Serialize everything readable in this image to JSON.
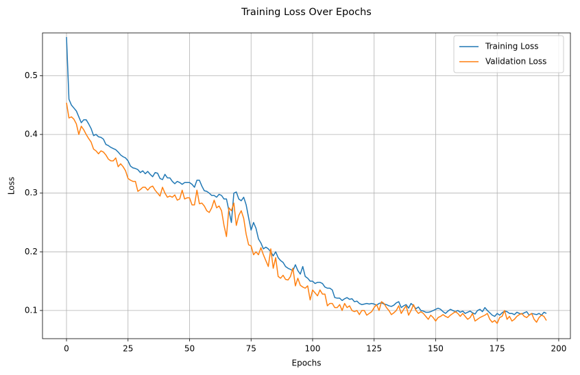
{
  "chart_data": {
    "type": "line",
    "title": "Training Loss Over Epochs",
    "x_label": "Epochs",
    "y_label": "Loss",
    "x": [
      0,
      1,
      2,
      3,
      4,
      5,
      6,
      7,
      8,
      9,
      10,
      11,
      12,
      13,
      14,
      15,
      16,
      17,
      18,
      19,
      20,
      21,
      22,
      23,
      24,
      25,
      26,
      27,
      28,
      29,
      30,
      31,
      32,
      33,
      34,
      35,
      36,
      37,
      38,
      39,
      40,
      41,
      42,
      43,
      44,
      45,
      46,
      47,
      48,
      49,
      50,
      51,
      52,
      53,
      54,
      55,
      56,
      57,
      58,
      59,
      60,
      61,
      62,
      63,
      64,
      65,
      66,
      67,
      68,
      69,
      70,
      71,
      72,
      73,
      74,
      75,
      76,
      77,
      78,
      79,
      80,
      81,
      82,
      83,
      84,
      85,
      86,
      87,
      88,
      89,
      90,
      91,
      92,
      93,
      94,
      95,
      96,
      97,
      98,
      99,
      100,
      101,
      102,
      103,
      104,
      105,
      106,
      107,
      108,
      109,
      110,
      111,
      112,
      113,
      114,
      115,
      116,
      117,
      118,
      119,
      120,
      121,
      122,
      123,
      124,
      125,
      126,
      127,
      128,
      129,
      130,
      131,
      132,
      133,
      134,
      135,
      136,
      137,
      138,
      139,
      140,
      141,
      142,
      143,
      144,
      145,
      146,
      147,
      148,
      149,
      150,
      151,
      152,
      153,
      154,
      155,
      156,
      157,
      158,
      159,
      160,
      161,
      162,
      163,
      164,
      165,
      166,
      167,
      168,
      169,
      170,
      171,
      172,
      173,
      174,
      175,
      176,
      177,
      178,
      179,
      180,
      181,
      182,
      183,
      184,
      185,
      186,
      187,
      188,
      189,
      190,
      191,
      192,
      193,
      194,
      195
    ],
    "series": [
      {
        "name": "Training Loss",
        "color": "#1f77b4",
        "values": [
          0.566,
          0.46,
          0.45,
          0.445,
          0.44,
          0.43,
          0.42,
          0.425,
          0.425,
          0.418,
          0.41,
          0.398,
          0.4,
          0.396,
          0.395,
          0.392,
          0.383,
          0.381,
          0.378,
          0.376,
          0.374,
          0.37,
          0.365,
          0.362,
          0.36,
          0.355,
          0.346,
          0.343,
          0.342,
          0.34,
          0.335,
          0.338,
          0.333,
          0.337,
          0.332,
          0.328,
          0.335,
          0.334,
          0.325,
          0.323,
          0.332,
          0.326,
          0.326,
          0.32,
          0.316,
          0.32,
          0.318,
          0.315,
          0.318,
          0.318,
          0.318,
          0.315,
          0.31,
          0.322,
          0.322,
          0.312,
          0.304,
          0.303,
          0.3,
          0.296,
          0.296,
          0.293,
          0.298,
          0.296,
          0.29,
          0.29,
          0.27,
          0.25,
          0.3,
          0.302,
          0.29,
          0.287,
          0.293,
          0.28,
          0.258,
          0.237,
          0.25,
          0.24,
          0.222,
          0.215,
          0.205,
          0.208,
          0.205,
          0.2,
          0.193,
          0.2,
          0.19,
          0.185,
          0.182,
          0.175,
          0.172,
          0.17,
          0.168,
          0.178,
          0.168,
          0.162,
          0.175,
          0.158,
          0.155,
          0.15,
          0.15,
          0.146,
          0.148,
          0.148,
          0.146,
          0.14,
          0.138,
          0.138,
          0.135,
          0.122,
          0.121,
          0.121,
          0.117,
          0.12,
          0.122,
          0.119,
          0.12,
          0.115,
          0.116,
          0.112,
          0.11,
          0.111,
          0.112,
          0.111,
          0.112,
          0.111,
          0.109,
          0.112,
          0.113,
          0.111,
          0.11,
          0.108,
          0.107,
          0.109,
          0.113,
          0.115,
          0.105,
          0.108,
          0.11,
          0.104,
          0.112,
          0.108,
          0.103,
          0.106,
          0.1,
          0.099,
          0.097,
          0.097,
          0.098,
          0.1,
          0.102,
          0.104,
          0.102,
          0.098,
          0.095,
          0.099,
          0.102,
          0.1,
          0.098,
          0.1,
          0.097,
          0.099,
          0.095,
          0.097,
          0.099,
          0.096,
          0.094,
          0.1,
          0.102,
          0.098,
          0.105,
          0.1,
          0.096,
          0.092,
          0.09,
          0.095,
          0.092,
          0.096,
          0.099,
          0.098,
          0.095,
          0.095,
          0.093,
          0.097,
          0.095,
          0.094,
          0.096,
          0.098,
          0.092,
          0.095,
          0.094,
          0.093,
          0.095,
          0.092,
          0.097,
          0.095
        ]
      },
      {
        "name": "Validation Loss",
        "color": "#ff7f0e",
        "values": [
          0.454,
          0.428,
          0.43,
          0.426,
          0.418,
          0.4,
          0.414,
          0.408,
          0.4,
          0.393,
          0.387,
          0.375,
          0.372,
          0.367,
          0.372,
          0.37,
          0.365,
          0.358,
          0.355,
          0.355,
          0.36,
          0.345,
          0.35,
          0.345,
          0.338,
          0.325,
          0.322,
          0.32,
          0.32,
          0.303,
          0.306,
          0.31,
          0.31,
          0.305,
          0.31,
          0.312,
          0.305,
          0.3,
          0.295,
          0.31,
          0.3,
          0.293,
          0.295,
          0.293,
          0.297,
          0.288,
          0.29,
          0.305,
          0.29,
          0.292,
          0.292,
          0.28,
          0.28,
          0.305,
          0.282,
          0.283,
          0.278,
          0.27,
          0.267,
          0.275,
          0.288,
          0.275,
          0.278,
          0.27,
          0.245,
          0.226,
          0.275,
          0.27,
          0.283,
          0.245,
          0.262,
          0.27,
          0.257,
          0.23,
          0.212,
          0.21,
          0.195,
          0.2,
          0.195,
          0.207,
          0.195,
          0.185,
          0.175,
          0.205,
          0.172,
          0.19,
          0.158,
          0.155,
          0.16,
          0.153,
          0.152,
          0.158,
          0.172,
          0.142,
          0.155,
          0.143,
          0.14,
          0.138,
          0.142,
          0.118,
          0.135,
          0.13,
          0.125,
          0.135,
          0.128,
          0.128,
          0.108,
          0.112,
          0.112,
          0.105,
          0.105,
          0.11,
          0.1,
          0.112,
          0.105,
          0.108,
          0.1,
          0.098,
          0.1,
          0.093,
          0.1,
          0.1,
          0.092,
          0.095,
          0.098,
          0.105,
          0.11,
          0.1,
          0.115,
          0.112,
          0.105,
          0.1,
          0.093,
          0.096,
          0.1,
          0.108,
          0.095,
          0.102,
          0.108,
          0.092,
          0.1,
          0.11,
          0.1,
          0.095,
          0.098,
          0.095,
          0.09,
          0.085,
          0.092,
          0.088,
          0.082,
          0.088,
          0.09,
          0.093,
          0.09,
          0.088,
          0.092,
          0.095,
          0.098,
          0.095,
          0.09,
          0.095,
          0.09,
          0.085,
          0.088,
          0.095,
          0.082,
          0.085,
          0.088,
          0.09,
          0.092,
          0.095,
          0.085,
          0.08,
          0.083,
          0.078,
          0.088,
          0.09,
          0.1,
          0.085,
          0.09,
          0.082,
          0.085,
          0.09,
          0.093,
          0.095,
          0.09,
          0.088,
          0.092,
          0.095,
          0.085,
          0.08,
          0.088,
          0.092,
          0.09,
          0.083
        ]
      }
    ],
    "xlim": [
      -9.75,
      204.75
    ],
    "ylim": [
      0.052,
      0.573
    ],
    "xticks": [
      0,
      25,
      50,
      75,
      100,
      125,
      150,
      175,
      200
    ],
    "yticks": [
      0.1,
      0.2,
      0.3,
      0.4,
      0.5
    ],
    "grid": true,
    "legend": "upper right"
  }
}
